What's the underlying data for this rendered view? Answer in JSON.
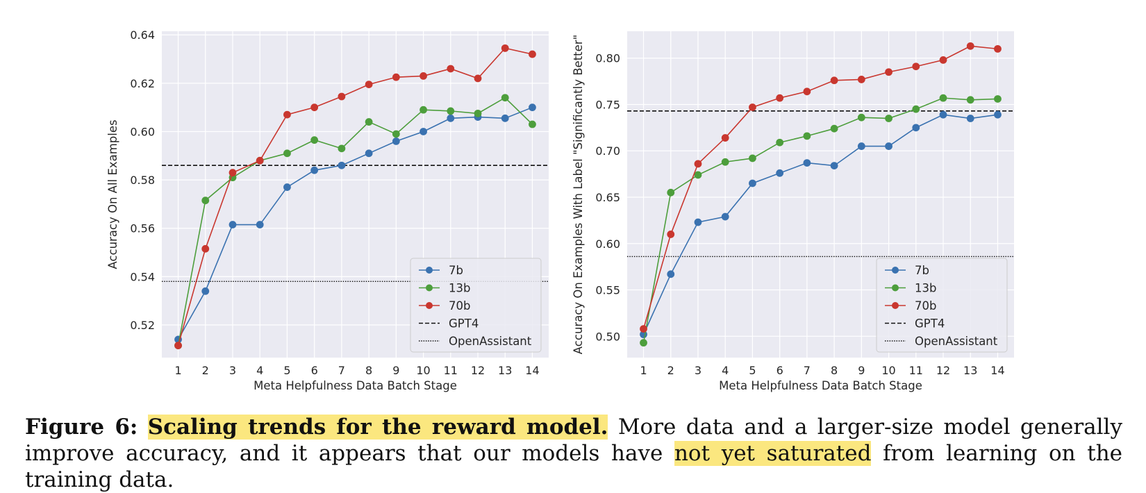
{
  "colors": {
    "series_7b": "#3a72b0",
    "series_13b": "#4d9e3c",
    "series_70b": "#c9372f",
    "plot_bg": "#eaeaf2",
    "highlight": "#fbe77f"
  },
  "chart_data": [
    {
      "type": "line",
      "xlabel": "Meta Helpfulness Data Batch Stage",
      "ylabel": "Accuracy On All Examples",
      "x": [
        1,
        2,
        3,
        4,
        5,
        6,
        7,
        8,
        9,
        10,
        11,
        12,
        13,
        14
      ],
      "xlim": [
        0.4,
        14.6
      ],
      "ylim": [
        0.5065,
        0.6415
      ],
      "yticks": [
        0.52,
        0.54,
        0.56,
        0.58,
        0.6,
        0.62,
        0.64
      ],
      "ytick_labels": [
        "0.52",
        "0.54",
        "0.56",
        "0.58",
        "0.60",
        "0.62",
        "0.64"
      ],
      "series": [
        {
          "name": "7b",
          "values": [
            0.514,
            0.534,
            0.5615,
            0.5615,
            0.577,
            0.584,
            0.586,
            0.591,
            0.596,
            0.6,
            0.6055,
            0.606,
            0.6055,
            0.61
          ]
        },
        {
          "name": "13b",
          "values": [
            0.5115,
            0.5715,
            0.581,
            0.588,
            0.591,
            0.5965,
            0.593,
            0.604,
            0.599,
            0.609,
            0.6085,
            0.6075,
            0.614,
            0.603
          ]
        },
        {
          "name": "70b",
          "values": [
            0.5115,
            0.5515,
            0.583,
            0.588,
            0.607,
            0.61,
            0.6145,
            0.6195,
            0.6225,
            0.623,
            0.626,
            0.622,
            0.6345,
            0.632
          ]
        }
      ],
      "hlines": [
        {
          "name": "GPT4",
          "value": 0.586,
          "style": "dashed"
        },
        {
          "name": "OpenAssistant",
          "value": 0.538,
          "style": "dotted"
        }
      ],
      "legend": [
        "7b",
        "13b",
        "70b",
        "GPT4",
        "OpenAssistant"
      ],
      "legend_position": "lower-right"
    },
    {
      "type": "line",
      "xlabel": "Meta Helpfulness Data Batch Stage",
      "ylabel": "Accuracy On Examples With Label \"Significantly Better\"",
      "x": [
        1,
        2,
        3,
        4,
        5,
        6,
        7,
        8,
        9,
        10,
        11,
        12,
        13,
        14
      ],
      "xlim": [
        0.4,
        14.6
      ],
      "ylim": [
        0.477,
        0.829
      ],
      "yticks": [
        0.5,
        0.55,
        0.6,
        0.65,
        0.7,
        0.75,
        0.8
      ],
      "ytick_labels": [
        "0.50",
        "0.55",
        "0.60",
        "0.65",
        "0.70",
        "0.75",
        "0.80"
      ],
      "series": [
        {
          "name": "7b",
          "values": [
            0.502,
            0.567,
            0.623,
            0.629,
            0.665,
            0.676,
            0.687,
            0.684,
            0.705,
            0.705,
            0.725,
            0.739,
            0.735,
            0.739
          ]
        },
        {
          "name": "13b",
          "values": [
            0.493,
            0.655,
            0.674,
            0.688,
            0.692,
            0.709,
            0.716,
            0.724,
            0.736,
            0.735,
            0.745,
            0.757,
            0.755,
            0.756
          ]
        },
        {
          "name": "70b",
          "values": [
            0.508,
            0.61,
            0.686,
            0.714,
            0.747,
            0.757,
            0.764,
            0.776,
            0.777,
            0.785,
            0.791,
            0.798,
            0.813,
            0.81
          ]
        }
      ],
      "hlines": [
        {
          "name": "GPT4",
          "value": 0.743,
          "style": "dashed"
        },
        {
          "name": "OpenAssistant",
          "value": 0.586,
          "style": "dotted"
        }
      ],
      "legend": [
        "7b",
        "13b",
        "70b",
        "GPT4",
        "OpenAssistant"
      ],
      "legend_position": "lower-right"
    }
  ],
  "caption": {
    "label": "Figure 6:",
    "title": "Scaling trends for the reward model.",
    "text1": "More data and a larger-size model generally improve accuracy, and it appears that our models have",
    "highlight2": "not yet saturated",
    "text2": "from learning on the training data."
  }
}
